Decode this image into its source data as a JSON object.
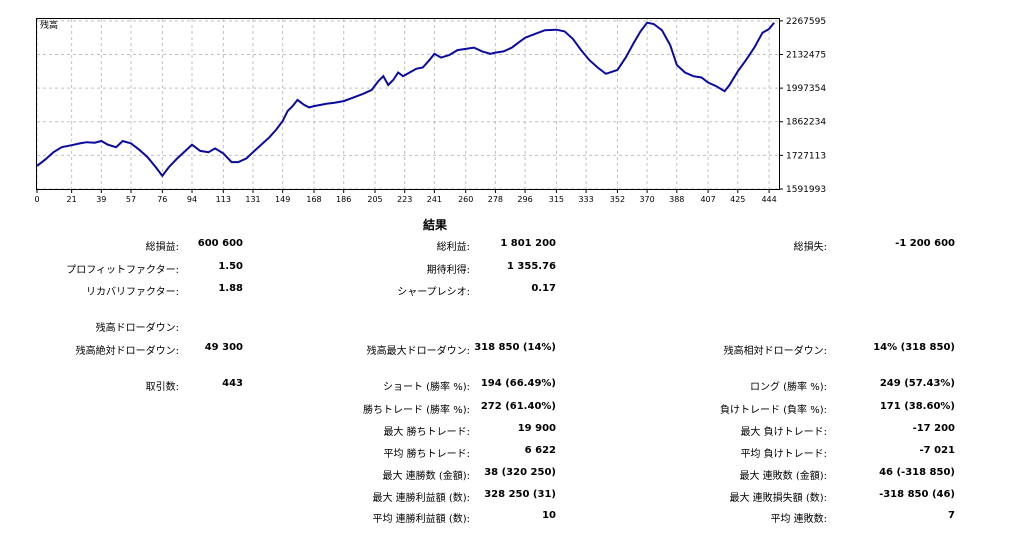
{
  "chart_data": {
    "type": "line",
    "title": "残高",
    "series": [
      {
        "color": "#0a0a9e",
        "x": [
          0,
          5,
          10,
          15,
          21,
          26,
          30,
          35,
          39,
          43,
          48,
          52,
          57,
          62,
          67,
          72,
          76,
          80,
          85,
          90,
          94,
          99,
          104,
          108,
          113,
          118,
          122,
          127,
          131,
          136,
          141,
          145,
          149,
          152,
          155,
          158,
          162,
          165,
          168,
          172,
          176,
          180,
          186,
          192,
          198,
          203,
          207,
          210,
          213,
          216,
          219,
          222,
          226,
          230,
          234,
          238,
          241,
          245,
          250,
          255,
          260,
          265,
          270,
          275,
          278,
          283,
          288,
          292,
          296,
          302,
          308,
          315,
          320,
          325,
          330,
          335,
          340,
          345,
          352,
          357,
          362,
          366,
          370,
          374,
          379,
          384,
          388,
          393,
          398,
          403,
          407,
          412,
          417,
          420,
          425,
          430,
          435,
          440,
          444,
          447
        ],
        "y": [
          1685000,
          1710000,
          1740000,
          1760000,
          1768000,
          1775000,
          1780000,
          1778000,
          1785000,
          1770000,
          1760000,
          1785000,
          1775000,
          1750000,
          1720000,
          1680000,
          1645000,
          1680000,
          1715000,
          1745000,
          1770000,
          1745000,
          1740000,
          1755000,
          1735000,
          1700000,
          1700000,
          1715000,
          1740000,
          1770000,
          1800000,
          1830000,
          1865000,
          1905000,
          1925000,
          1950000,
          1930000,
          1920000,
          1925000,
          1930000,
          1935000,
          1938000,
          1945000,
          1960000,
          1975000,
          1990000,
          2025000,
          2045000,
          2010000,
          2030000,
          2060000,
          2045000,
          2060000,
          2075000,
          2080000,
          2110000,
          2135000,
          2120000,
          2130000,
          2150000,
          2155000,
          2160000,
          2145000,
          2135000,
          2140000,
          2145000,
          2160000,
          2180000,
          2200000,
          2215000,
          2230000,
          2232000,
          2225000,
          2195000,
          2150000,
          2110000,
          2080000,
          2055000,
          2070000,
          2120000,
          2180000,
          2225000,
          2260000,
          2255000,
          2230000,
          2170000,
          2090000,
          2060000,
          2045000,
          2040000,
          2020000,
          2005000,
          1985000,
          2010000,
          2065000,
          2110000,
          2160000,
          2220000,
          2235000,
          2260000
        ]
      }
    ],
    "x_ticks": [
      "0",
      "21",
      "39",
      "57",
      "76",
      "94",
      "113",
      "131",
      "149",
      "168",
      "186",
      "205",
      "223",
      "241",
      "260",
      "278",
      "296",
      "315",
      "333",
      "352",
      "370",
      "388",
      "407",
      "425",
      "444"
    ],
    "y_ticks": [
      "2267595",
      "2132475",
      "1997354",
      "1862234",
      "1727113",
      "1591993"
    ],
    "xlim": [
      0,
      450
    ],
    "ylim": [
      1591993,
      2275000
    ],
    "grid": true,
    "line_color": "#0a0a9e",
    "frame_color": "#000000",
    "grid_color": "#c0c0c0"
  },
  "results": {
    "title": "結果",
    "col1": [
      {
        "label": "総損益:",
        "value": "600 600"
      },
      {
        "label": "プロフィットファクター:",
        "value": "1.50"
      },
      {
        "label": "リカバリファクター:",
        "value": "1.88"
      },
      {
        "label": "残高ドローダウン:",
        "value": ""
      },
      {
        "label": "残高絶対ドローダウン:",
        "value": "49 300"
      },
      {
        "label": "取引数:",
        "value": "443"
      }
    ],
    "col2": [
      {
        "label": "総利益:",
        "value": "1 801 200"
      },
      {
        "label": "期待利得:",
        "value": "1 355.76"
      },
      {
        "label": "シャープレシオ:",
        "value": "0.17"
      },
      {
        "label": "残高最大ドローダウン:",
        "value": "318 850 (14%)"
      },
      {
        "label": "ショート (勝率 %):",
        "value": "194 (66.49%)"
      },
      {
        "label": "勝ちトレード (勝率 %):",
        "value": "272 (61.40%)"
      },
      {
        "label": "最大 勝ちトレード:",
        "value": "19 900"
      },
      {
        "label": "平均 勝ちトレード:",
        "value": "6 622"
      },
      {
        "label": "最大 連勝数 (金額):",
        "value": "38 (320 250)"
      },
      {
        "label": "最大 連勝利益額 (数):",
        "value": "328 250 (31)"
      },
      {
        "label": "平均 連勝利益額 (数):",
        "value": "10"
      }
    ],
    "col3": [
      {
        "label": "総損失:",
        "value": "-1 200 600"
      },
      {
        "label": "残高相対ドローダウン:",
        "value": "14% (318 850)"
      },
      {
        "label": "ロング (勝率 %):",
        "value": "249 (57.43%)"
      },
      {
        "label": "負けトレード (負率 %):",
        "value": "171 (38.60%)"
      },
      {
        "label": "最大 負けトレード:",
        "value": "-17 200"
      },
      {
        "label": "平均 負けトレード:",
        "value": "-7 021"
      },
      {
        "label": "最大 連敗数 (金額):",
        "value": "46 (-318 850)"
      },
      {
        "label": "最大 連敗損失額 (数):",
        "value": "-318 850 (46)"
      },
      {
        "label": "平均 連敗数:",
        "value": "7"
      }
    ]
  }
}
